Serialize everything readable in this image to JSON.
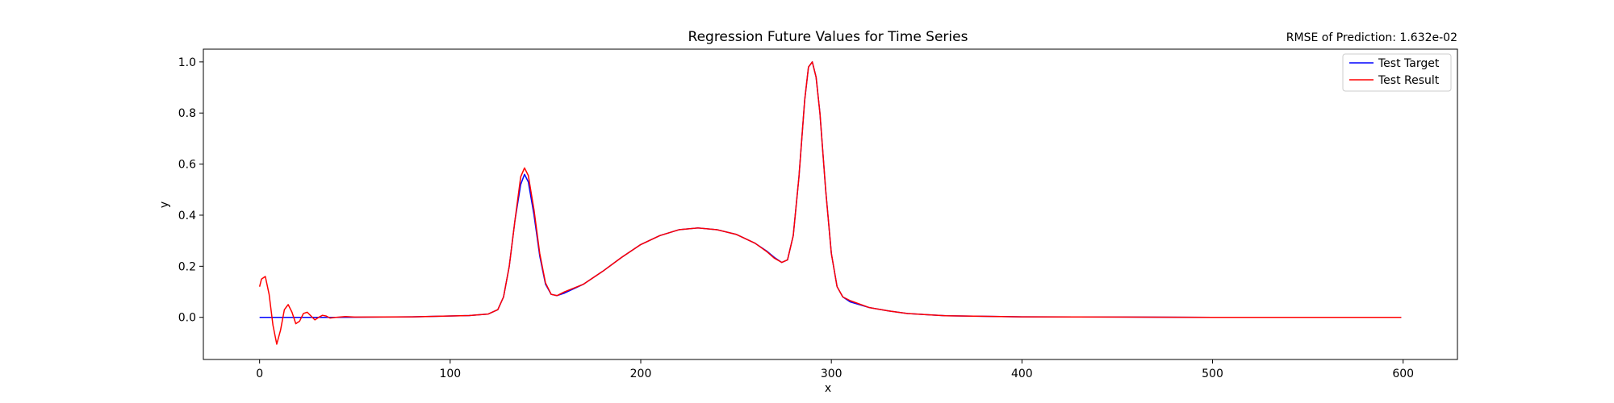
{
  "chart_data": {
    "type": "line",
    "title": "Regression Future Values for Time Series",
    "subtitle": "RMSE of Prediction: 1.632e-02",
    "xlabel": "x",
    "ylabel": "y",
    "xlim": [
      -29.5,
      628.5
    ],
    "ylim": [
      -0.165,
      1.05
    ],
    "x_ticks": [
      0,
      100,
      200,
      300,
      400,
      500,
      600
    ],
    "y_ticks": [
      0.0,
      0.2,
      0.4,
      0.6,
      0.8,
      1.0
    ],
    "x_tick_labels": [
      "0",
      "100",
      "200",
      "300",
      "400",
      "500",
      "600"
    ],
    "y_tick_labels": [
      "0.0",
      "0.2",
      "0.4",
      "0.6",
      "0.8",
      "1.0"
    ],
    "grid": false,
    "legend_position": "top-right",
    "series": [
      {
        "name": "Test Target",
        "color": "#0000ff",
        "x": [
          0,
          40,
          80,
          110,
          120,
          125,
          128,
          131,
          134,
          137,
          139,
          141,
          144,
          147,
          150,
          153,
          156,
          160,
          170,
          180,
          190,
          200,
          210,
          220,
          230,
          240,
          250,
          260,
          266,
          270,
          274,
          277,
          280,
          283,
          286,
          288,
          290,
          292,
          294,
          297,
          300,
          303,
          306,
          310,
          320,
          330,
          340,
          360,
          400,
          500,
          599
        ],
        "values": [
          0.0,
          0.0,
          0.002,
          0.007,
          0.013,
          0.03,
          0.08,
          0.2,
          0.38,
          0.52,
          0.56,
          0.53,
          0.4,
          0.24,
          0.13,
          0.09,
          0.085,
          0.095,
          0.13,
          0.18,
          0.235,
          0.285,
          0.32,
          0.343,
          0.35,
          0.343,
          0.325,
          0.29,
          0.26,
          0.235,
          0.215,
          0.225,
          0.32,
          0.55,
          0.85,
          0.98,
          1.0,
          0.94,
          0.8,
          0.5,
          0.25,
          0.12,
          0.08,
          0.06,
          0.038,
          0.025,
          0.015,
          0.006,
          0.002,
          0.0,
          0.0
        ]
      },
      {
        "name": "Test Result",
        "color": "#ff0000",
        "x": [
          0,
          1,
          3,
          5,
          7,
          9,
          11,
          13,
          15,
          17,
          19,
          21,
          23,
          25,
          27,
          29,
          31,
          33,
          35,
          37,
          40,
          45,
          50,
          80,
          110,
          120,
          125,
          128,
          131,
          134,
          137,
          139,
          141,
          144,
          147,
          150,
          153,
          156,
          160,
          170,
          180,
          190,
          200,
          210,
          220,
          230,
          240,
          250,
          260,
          266,
          270,
          274,
          277,
          280,
          283,
          286,
          288,
          290,
          292,
          294,
          297,
          300,
          303,
          306,
          310,
          320,
          330,
          340,
          360,
          400,
          500,
          599
        ],
        "values": [
          0.12,
          0.15,
          0.16,
          0.09,
          -0.03,
          -0.105,
          -0.05,
          0.03,
          0.05,
          0.02,
          -0.025,
          -0.015,
          0.015,
          0.02,
          0.005,
          -0.01,
          0.0,
          0.008,
          0.005,
          -0.003,
          0.0,
          0.003,
          0.001,
          0.002,
          0.007,
          0.013,
          0.03,
          0.08,
          0.2,
          0.38,
          0.55,
          0.585,
          0.555,
          0.42,
          0.25,
          0.135,
          0.09,
          0.085,
          0.1,
          0.13,
          0.18,
          0.235,
          0.285,
          0.32,
          0.343,
          0.35,
          0.343,
          0.325,
          0.29,
          0.258,
          0.232,
          0.215,
          0.225,
          0.32,
          0.55,
          0.85,
          0.98,
          1.0,
          0.94,
          0.8,
          0.5,
          0.25,
          0.12,
          0.08,
          0.065,
          0.038,
          0.025,
          0.015,
          0.006,
          0.002,
          0.0,
          0.0
        ]
      }
    ]
  }
}
